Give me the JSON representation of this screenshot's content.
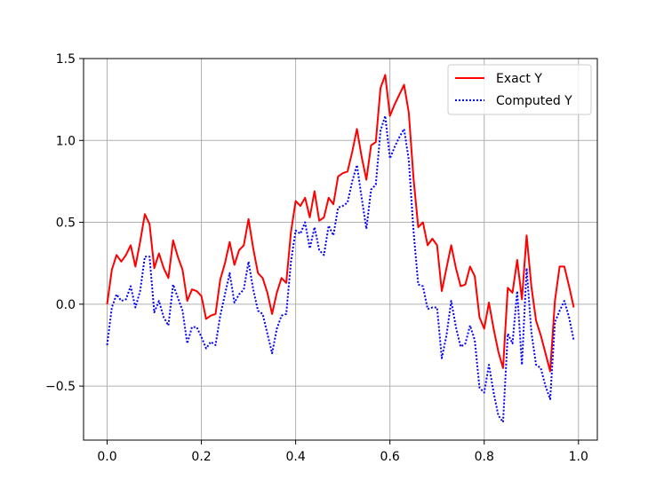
{
  "chart_data": {
    "type": "line",
    "title": "",
    "xlabel": "",
    "ylabel": "",
    "xlim": [
      -0.05,
      1.04
    ],
    "ylim": [
      -0.83,
      1.5
    ],
    "xticks": [
      0.0,
      0.2,
      0.4,
      0.6,
      0.8,
      1.0
    ],
    "xtick_labels": [
      "0.0",
      "0.2",
      "0.4",
      "0.6",
      "0.8",
      "1.0"
    ],
    "yticks": [
      -0.5,
      0.0,
      0.5,
      1.0,
      1.5
    ],
    "ytick_labels": [
      "−0.5",
      "0.0",
      "0.5",
      "1.0",
      "1.5"
    ],
    "grid": true,
    "legend": "top-right",
    "x": [
      0.0,
      0.01,
      0.02,
      0.03,
      0.04,
      0.05,
      0.06,
      0.07,
      0.08,
      0.09,
      0.1,
      0.11,
      0.12,
      0.13,
      0.14,
      0.15,
      0.16,
      0.17,
      0.18,
      0.19,
      0.2,
      0.21,
      0.22,
      0.23,
      0.24,
      0.25,
      0.26,
      0.27,
      0.28,
      0.29,
      0.3,
      0.31,
      0.32,
      0.33,
      0.34,
      0.35,
      0.36,
      0.37,
      0.38,
      0.39,
      0.4,
      0.41,
      0.42,
      0.43,
      0.44,
      0.45,
      0.46,
      0.47,
      0.48,
      0.49,
      0.5,
      0.51,
      0.52,
      0.53,
      0.54,
      0.55,
      0.56,
      0.57,
      0.58,
      0.59,
      0.6,
      0.61,
      0.62,
      0.63,
      0.64,
      0.65,
      0.66,
      0.67,
      0.68,
      0.69,
      0.7,
      0.71,
      0.72,
      0.73,
      0.74,
      0.75,
      0.76,
      0.77,
      0.78,
      0.79,
      0.8,
      0.81,
      0.82,
      0.83,
      0.84,
      0.85,
      0.86,
      0.87,
      0.88,
      0.89,
      0.9,
      0.91,
      0.92,
      0.93,
      0.94,
      0.95,
      0.96,
      0.97,
      0.98,
      0.99
    ],
    "series": [
      {
        "name": "Exact Y",
        "color": "#ff0000",
        "style": "solid",
        "values": [
          0.0,
          0.21,
          0.3,
          0.26,
          0.3,
          0.36,
          0.23,
          0.38,
          0.55,
          0.49,
          0.22,
          0.31,
          0.22,
          0.16,
          0.39,
          0.29,
          0.21,
          0.02,
          0.09,
          0.08,
          0.05,
          -0.09,
          -0.07,
          -0.06,
          0.15,
          0.25,
          0.38,
          0.24,
          0.33,
          0.36,
          0.52,
          0.34,
          0.19,
          0.16,
          0.07,
          -0.06,
          0.07,
          0.16,
          0.13,
          0.44,
          0.63,
          0.6,
          0.65,
          0.53,
          0.69,
          0.51,
          0.53,
          0.65,
          0.61,
          0.78,
          0.8,
          0.81,
          0.93,
          1.07,
          0.9,
          0.76,
          0.97,
          0.99,
          1.32,
          1.4,
          1.15,
          1.22,
          1.28,
          1.34,
          1.17,
          0.77,
          0.47,
          0.5,
          0.36,
          0.4,
          0.36,
          0.08,
          0.22,
          0.36,
          0.22,
          0.11,
          0.12,
          0.23,
          0.17,
          -0.08,
          -0.15,
          0.01,
          -0.15,
          -0.29,
          -0.39,
          0.1,
          0.07,
          0.27,
          0.03,
          0.42,
          0.11,
          -0.1,
          -0.19,
          -0.3,
          -0.41,
          0.02,
          0.23,
          0.23,
          0.11,
          -0.02
        ]
      },
      {
        "name": "Computed Y",
        "color": "#0000ff",
        "style": "dotted",
        "values": [
          -0.25,
          -0.02,
          0.06,
          0.02,
          0.03,
          0.11,
          -0.02,
          0.08,
          0.29,
          0.29,
          -0.05,
          0.02,
          -0.08,
          -0.13,
          0.12,
          0.04,
          -0.04,
          -0.24,
          -0.14,
          -0.14,
          -0.2,
          -0.27,
          -0.23,
          -0.25,
          -0.07,
          0.06,
          0.19,
          0.01,
          0.06,
          0.09,
          0.26,
          0.09,
          -0.04,
          -0.06,
          -0.18,
          -0.3,
          -0.15,
          -0.07,
          -0.06,
          0.26,
          0.45,
          0.43,
          0.5,
          0.34,
          0.47,
          0.33,
          0.3,
          0.48,
          0.42,
          0.59,
          0.6,
          0.62,
          0.75,
          0.85,
          0.65,
          0.46,
          0.7,
          0.73,
          1.06,
          1.15,
          0.89,
          0.96,
          1.02,
          1.07,
          0.88,
          0.45,
          0.12,
          0.11,
          -0.03,
          -0.02,
          -0.02,
          -0.33,
          -0.19,
          0.02,
          -0.14,
          -0.26,
          -0.24,
          -0.13,
          -0.22,
          -0.51,
          -0.54,
          -0.37,
          -0.54,
          -0.68,
          -0.72,
          -0.18,
          -0.24,
          0.08,
          -0.37,
          0.22,
          -0.17,
          -0.37,
          -0.39,
          -0.5,
          -0.58,
          -0.11,
          -0.04,
          0.02,
          -0.08,
          -0.22
        ]
      }
    ]
  }
}
